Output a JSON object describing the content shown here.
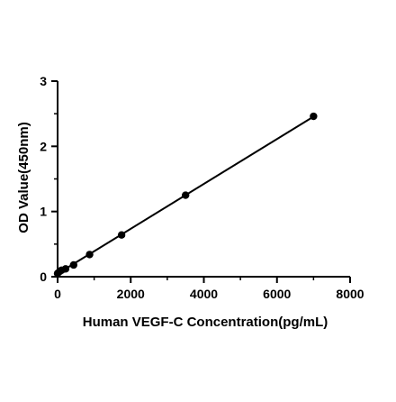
{
  "chart_data": {
    "type": "scatter",
    "title": "",
    "xlabel": "Human VEGF-C Concentration(pg/mL)",
    "ylabel": "OD Value(450nm)",
    "xlim": [
      0,
      8000
    ],
    "ylim": [
      0,
      3
    ],
    "x_ticks": [
      "0",
      "2000",
      "4000",
      "6000",
      "8000"
    ],
    "y_ticks": [
      "0",
      "1",
      "2",
      "3"
    ],
    "grid": false,
    "legend": "none",
    "fit_line": true,
    "series": [
      {
        "x": [
          0,
          55,
          109,
          219,
          438,
          875,
          1750,
          3500,
          7000
        ],
        "y": [
          0.05,
          0.08,
          0.1,
          0.12,
          0.18,
          0.34,
          0.64,
          1.25,
          2.46
        ]
      }
    ],
    "colors": {
      "marker": "#000000",
      "line": "#000000",
      "axis": "#000000"
    }
  }
}
